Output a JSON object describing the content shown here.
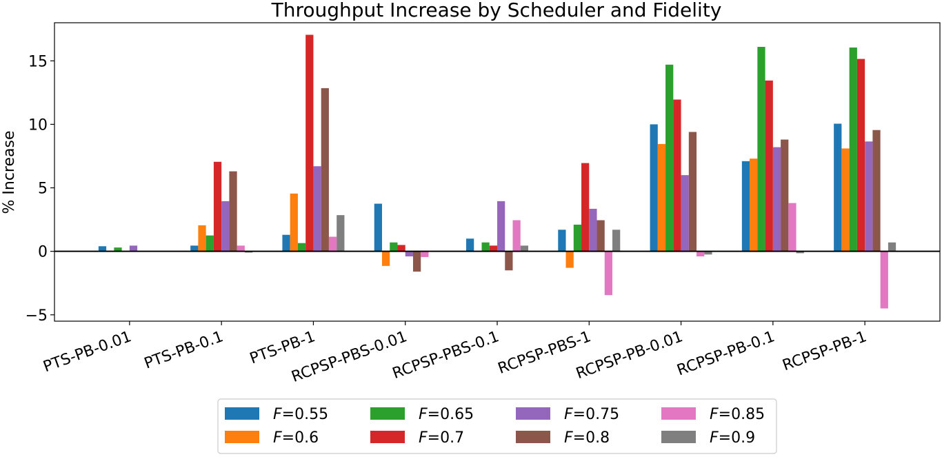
{
  "chart_data": {
    "type": "bar",
    "title": "Throughput Increase by Scheduler and Fidelity",
    "xlabel": "",
    "ylabel": "% Increase",
    "ylim": [
      -5.5,
      18
    ],
    "yticks": [
      -5,
      0,
      5,
      10,
      15
    ],
    "ytick_labels": [
      "−5",
      "0",
      "5",
      "10",
      "15"
    ],
    "grid": false,
    "legend_position": "bottom",
    "legend_columns": 4,
    "categories": [
      "PTS-PB-0.01",
      "PTS-PB-0.1",
      "PTS-PB-1",
      "RCPSP-PBS-0.01",
      "RCPSP-PBS-0.1",
      "RCPSP-PBS-1",
      "RCPSP-PB-0.01",
      "RCPSP-PB-0.1",
      "RCPSP-PB-1"
    ],
    "series": [
      {
        "name": "F=0.55",
        "label_var": "F",
        "label_val": "=0.55",
        "color": "#1f77b4",
        "values": [
          0.4,
          0.45,
          1.3,
          3.75,
          1.0,
          1.7,
          10.0,
          7.1,
          10.05
        ]
      },
      {
        "name": "F=0.6",
        "label_var": "F",
        "label_val": "=0.6",
        "color": "#ff7f0e",
        "values": [
          0.05,
          2.05,
          4.55,
          -1.15,
          0.0,
          -1.3,
          8.45,
          7.3,
          8.1
        ]
      },
      {
        "name": "F=0.65",
        "label_var": "F",
        "label_val": "=0.65",
        "color": "#2ca02c",
        "values": [
          0.3,
          1.25,
          0.65,
          0.7,
          0.7,
          2.1,
          14.7,
          16.1,
          16.05
        ]
      },
      {
        "name": "F=0.7",
        "label_var": "F",
        "label_val": "=0.7",
        "color": "#d62728",
        "values": [
          0.0,
          7.05,
          17.05,
          0.5,
          0.45,
          6.95,
          11.95,
          13.45,
          15.15
        ]
      },
      {
        "name": "F=0.75",
        "label_var": "F",
        "label_val": "=0.75",
        "color": "#9467bd",
        "values": [
          0.45,
          3.95,
          6.7,
          -0.4,
          3.95,
          3.35,
          6.0,
          8.2,
          8.65
        ]
      },
      {
        "name": "F=0.8",
        "label_var": "F",
        "label_val": "=0.8",
        "color": "#8c564b",
        "values": [
          0.0,
          6.3,
          12.85,
          -1.6,
          -1.5,
          2.45,
          9.4,
          8.8,
          9.55
        ]
      },
      {
        "name": "F=0.85",
        "label_var": "F",
        "label_val": "=0.85",
        "color": "#e377c2",
        "values": [
          0.0,
          0.45,
          1.15,
          -0.45,
          2.45,
          -3.45,
          -0.4,
          3.8,
          -4.5
        ]
      },
      {
        "name": "F=0.9",
        "label_var": "F",
        "label_val": "=0.9",
        "color": "#7f7f7f",
        "values": [
          0.0,
          -0.1,
          2.85,
          0.0,
          0.45,
          1.7,
          -0.25,
          -0.15,
          0.7
        ]
      }
    ]
  }
}
